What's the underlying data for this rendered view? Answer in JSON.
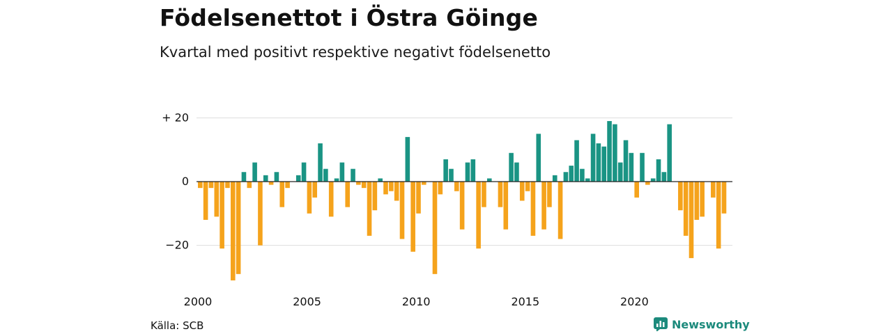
{
  "header": {
    "title": "Födelsenettot i Östra Göinge",
    "subtitle": "Kvartal med positivt respektive negativt födelsenetto"
  },
  "footer": {
    "source": "Källa: SCB",
    "brand": "Newsworthy",
    "brand_icon": "bar-chart-logo-icon"
  },
  "colors": {
    "positive": "#1a9484",
    "negative": "#f5a31c",
    "grid": "#dddddd",
    "baseline": "#222222",
    "brand": "#1c8a7c"
  },
  "chart_data": {
    "type": "bar",
    "title": "Födelsenettot i Östra Göinge",
    "subtitle": "Kvartal med positivt respektive negativt födelsenetto",
    "x_start_year": 2000,
    "x_step": "quarter",
    "x_tick_labels": [
      "2000",
      "2005",
      "2010",
      "2015",
      "2020"
    ],
    "x_tick_years": [
      2000,
      2005,
      2010,
      2015,
      2020
    ],
    "y_tick_labels": [
      "+ 20",
      "0",
      "−20"
    ],
    "y_tick_values": [
      20,
      0,
      -20
    ],
    "ylim": [
      -32,
      20
    ],
    "grid": true,
    "values": [
      -2,
      -12,
      -2,
      -11,
      -21,
      -2,
      -31,
      -29,
      3,
      -2,
      6,
      -20,
      2,
      -1,
      3,
      -8,
      -2,
      0,
      2,
      6,
      -10,
      -5,
      12,
      4,
      -11,
      1,
      6,
      -8,
      4,
      -1,
      -2,
      -17,
      -9,
      1,
      -4,
      -3,
      -6,
      -18,
      14,
      -22,
      -10,
      -1,
      0,
      -29,
      -4,
      7,
      4,
      -3,
      -15,
      6,
      7,
      -21,
      -8,
      1,
      0,
      -8,
      -15,
      9,
      6,
      -6,
      -3,
      -17,
      15,
      -15,
      -8,
      2,
      -18,
      3,
      5,
      13,
      4,
      1,
      15,
      12,
      11,
      19,
      18,
      6,
      13,
      9,
      -5,
      9,
      -1,
      1,
      7,
      3,
      18,
      0,
      -9,
      -17,
      -24,
      -12,
      -11,
      0,
      -5,
      -21,
      -10
    ]
  }
}
